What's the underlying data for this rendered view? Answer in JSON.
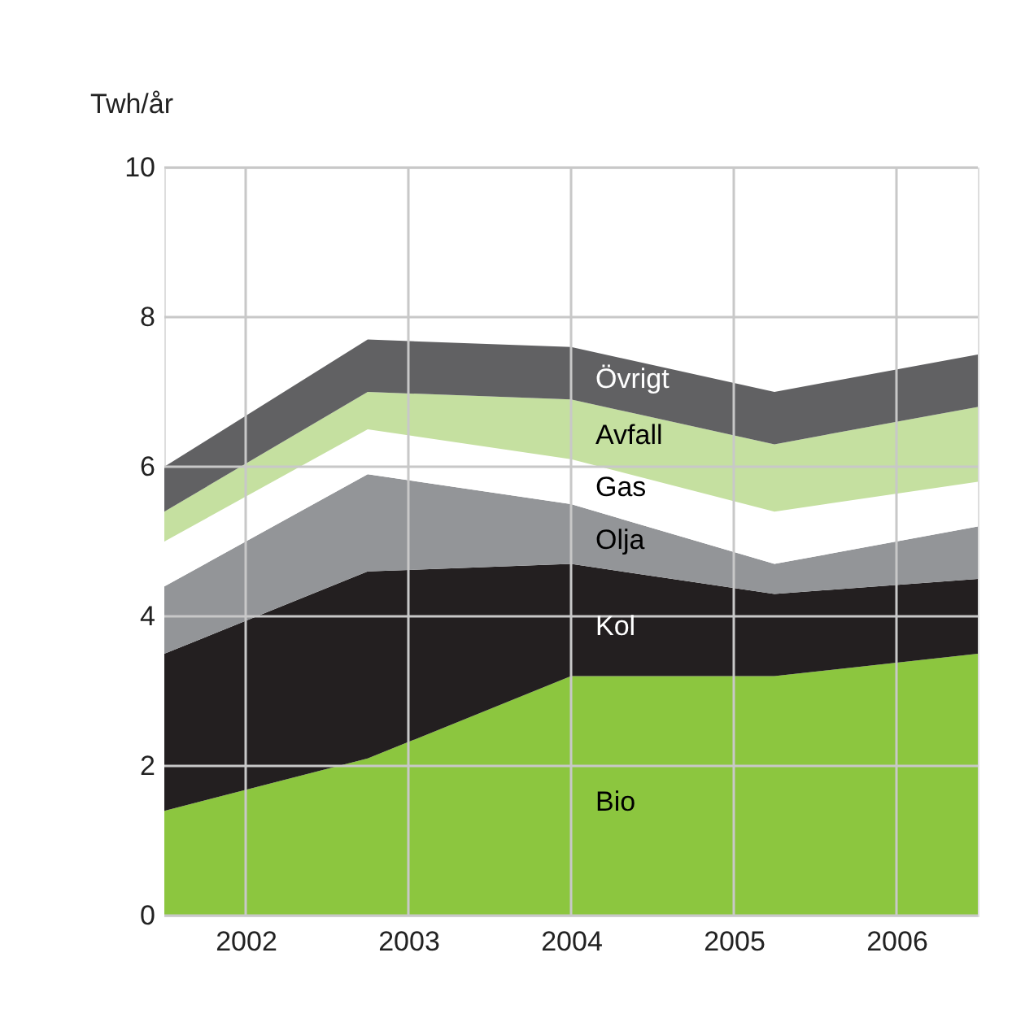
{
  "chart_data": {
    "type": "area",
    "stacked": true,
    "ylabel": "Twh/år",
    "x": [
      2001.5,
      2002.75,
      2004,
      2005.25,
      2006.5
    ],
    "xlim": [
      2001.5,
      2006.5
    ],
    "xticks": [
      2002,
      2003,
      2004,
      2005,
      2006
    ],
    "ylim": [
      0,
      10
    ],
    "yticks": [
      0,
      2,
      4,
      6,
      8,
      10
    ],
    "grid": true,
    "legend": false,
    "series": [
      {
        "name": "Bio",
        "color": "#8cc63f",
        "values": [
          1.4,
          2.1,
          3.2,
          3.2,
          3.5
        ]
      },
      {
        "name": "Kol",
        "color": "#231f20",
        "values": [
          2.1,
          2.5,
          1.5,
          1.1,
          1.0
        ]
      },
      {
        "name": "Olja",
        "color": "#939598",
        "values": [
          0.9,
          1.3,
          0.8,
          0.4,
          0.7
        ]
      },
      {
        "name": "Gas",
        "color": "#ffffff",
        "values": [
          0.6,
          0.6,
          0.6,
          0.7,
          0.6
        ]
      },
      {
        "name": "Avfall",
        "color": "#c5e0a0",
        "values": [
          0.4,
          0.5,
          0.8,
          0.9,
          1.0
        ]
      },
      {
        "name": "Övrigt",
        "color": "#616163",
        "values": [
          0.6,
          0.7,
          0.7,
          0.7,
          0.7
        ]
      }
    ]
  }
}
